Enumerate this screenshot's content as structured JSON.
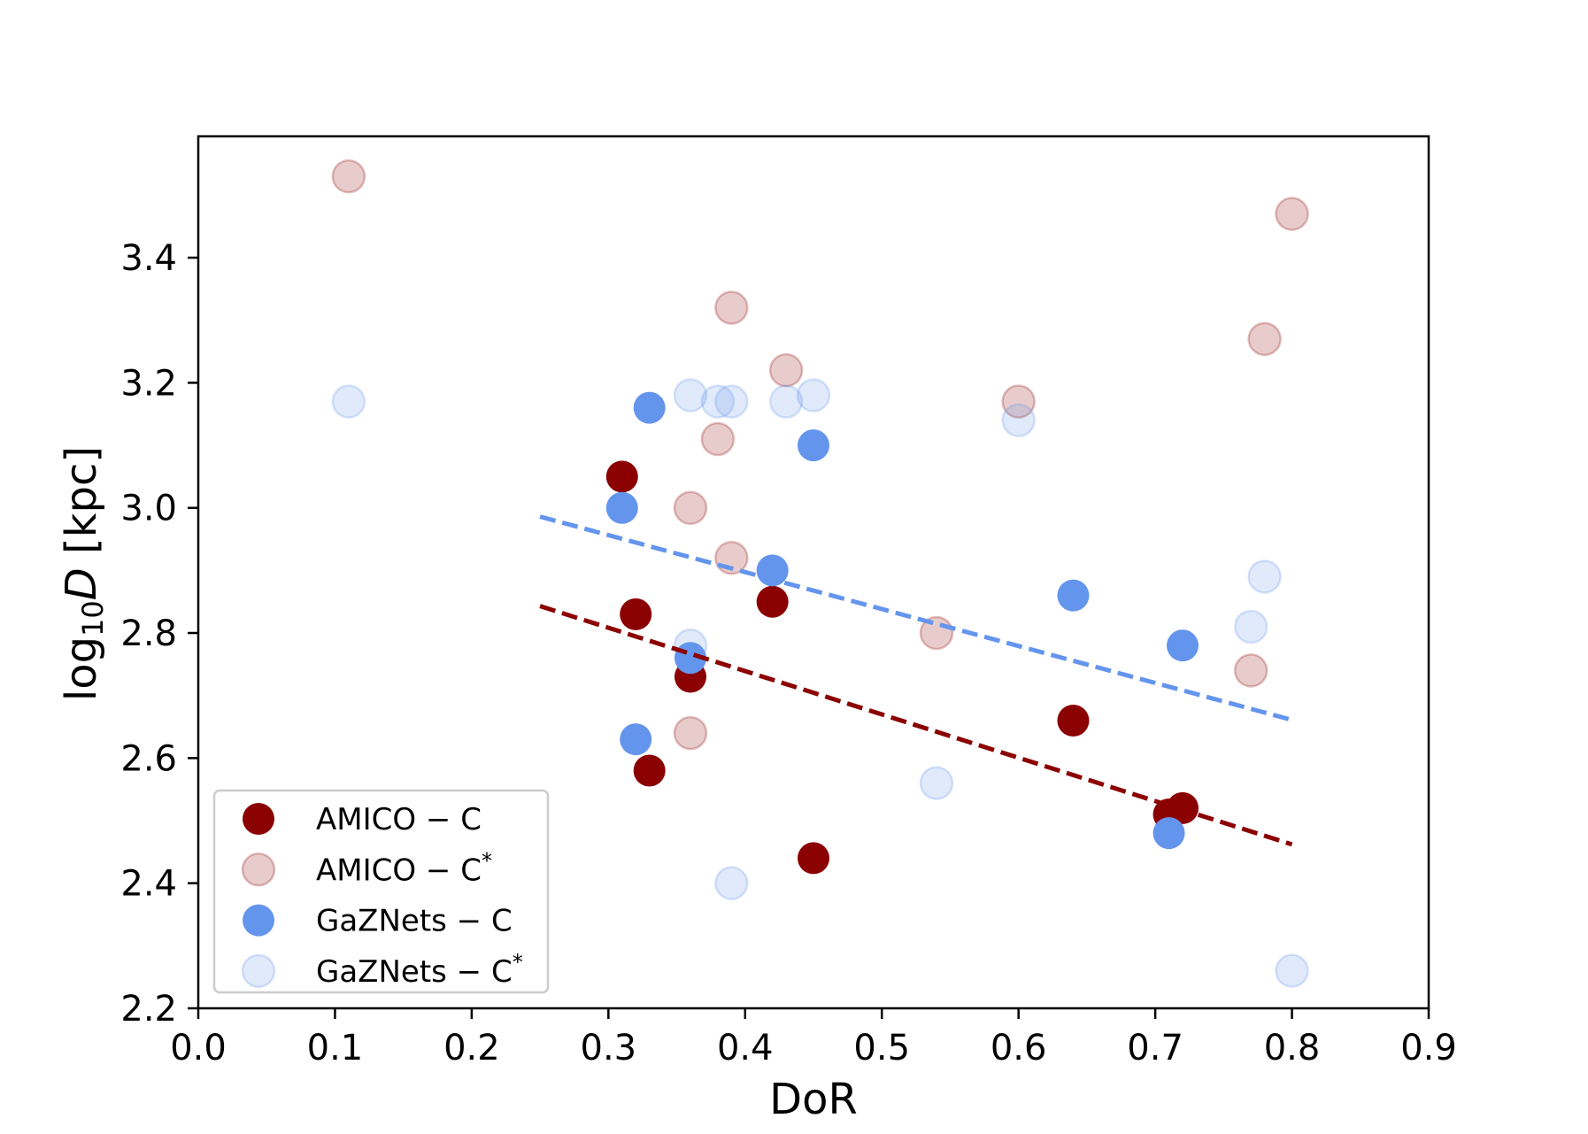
{
  "chart_data": {
    "type": "scatter",
    "title": "",
    "xlabel": "DoR",
    "ylabel_parts": {
      "base": "log",
      "subscript": "10",
      "italic": "D",
      "unit": " [kpc]"
    },
    "ylabel": "log10 D [kpc]",
    "xlim": [
      0.0,
      0.9
    ],
    "ylim": [
      2.2,
      3.594
    ],
    "grid": false,
    "legend_placement": "lower-left",
    "x_ticks": [
      "0.0",
      "0.1",
      "0.2",
      "0.3",
      "0.4",
      "0.5",
      "0.6",
      "0.7",
      "0.8",
      "0.9"
    ],
    "x_tick_values": [
      0.0,
      0.1,
      0.2,
      0.3,
      0.4,
      0.5,
      0.6,
      0.7,
      0.8,
      0.9
    ],
    "y_ticks": [
      "2.2",
      "2.4",
      "2.6",
      "2.8",
      "3.0",
      "3.2",
      "3.4"
    ],
    "y_tick_values": [
      2.2,
      2.4,
      2.6,
      2.8,
      3.0,
      3.2,
      3.4
    ],
    "series": [
      {
        "name": "AMICO − C",
        "legend_base": "AMICO − C",
        "legend_sup": "",
        "color": "#8b0000",
        "faded": false,
        "x": [
          0.31,
          0.32,
          0.33,
          0.36,
          0.42,
          0.45,
          0.64,
          0.71,
          0.72
        ],
        "y": [
          3.05,
          2.83,
          2.58,
          2.73,
          2.85,
          2.44,
          2.66,
          2.51,
          2.52
        ]
      },
      {
        "name": "AMICO − C*",
        "legend_base": "AMICO − C",
        "legend_sup": "*",
        "color": "#8b0000",
        "faded": true,
        "x": [
          0.11,
          0.36,
          0.36,
          0.38,
          0.39,
          0.39,
          0.43,
          0.54,
          0.6,
          0.77,
          0.78,
          0.8
        ],
        "y": [
          3.53,
          3.0,
          2.64,
          3.11,
          3.32,
          2.92,
          3.22,
          2.8,
          3.17,
          2.74,
          3.27,
          3.47
        ]
      },
      {
        "name": "GaZNets − C",
        "legend_base": "GaZNets − C",
        "legend_sup": "",
        "color": "#6495ed",
        "faded": false,
        "x": [
          0.31,
          0.32,
          0.33,
          0.36,
          0.42,
          0.45,
          0.64,
          0.71,
          0.72
        ],
        "y": [
          3.0,
          2.63,
          3.16,
          2.76,
          2.9,
          3.1,
          2.86,
          2.48,
          2.78
        ]
      },
      {
        "name": "GaZNets − C*",
        "legend_base": "GaZNets − C",
        "legend_sup": "*",
        "color": "#6495ed",
        "faded": true,
        "x": [
          0.11,
          0.36,
          0.36,
          0.38,
          0.39,
          0.39,
          0.43,
          0.45,
          0.54,
          0.6,
          0.77,
          0.78,
          0.8
        ],
        "y": [
          3.17,
          3.18,
          2.78,
          3.17,
          3.17,
          2.4,
          3.17,
          3.18,
          2.56,
          3.14,
          2.81,
          2.89,
          2.26
        ]
      }
    ],
    "fit_lines": [
      {
        "name": "AMICO − C fit",
        "color": "#8b0000",
        "style": "dashed",
        "x": [
          0.25,
          0.8
        ],
        "y": [
          2.843,
          2.462
        ]
      },
      {
        "name": "GaZNets − C fit",
        "color": "#6495ed",
        "style": "dashed",
        "x": [
          0.25,
          0.8
        ],
        "y": [
          2.986,
          2.661
        ]
      }
    ]
  }
}
